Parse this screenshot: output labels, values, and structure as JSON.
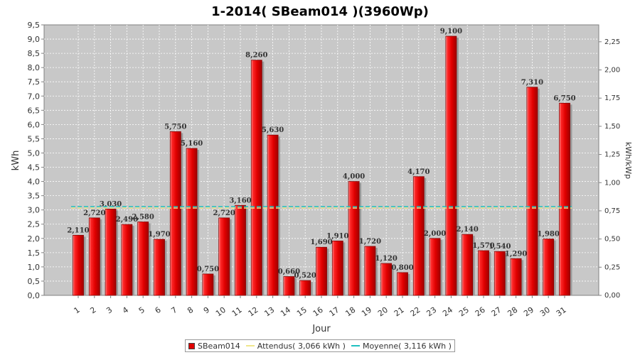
{
  "chart_data": {
    "type": "bar",
    "title": "1-2014( SBeam014 )(3960Wp)",
    "xlabel": "Jour",
    "ylabel": "kWh",
    "y2label": "kWh/kWp",
    "ylim": [
      0,
      9.5
    ],
    "y2lim": [
      0,
      2.4
    ],
    "yticks": [
      "0,0",
      "0,5",
      "1,0",
      "1,5",
      "2,0",
      "2,5",
      "3,0",
      "3,5",
      "4,0",
      "4,5",
      "5,0",
      "5,5",
      "6,0",
      "6,5",
      "7,0",
      "7,5",
      "8,0",
      "8,5",
      "9,0",
      "9,5"
    ],
    "y2ticks": [
      "0,00",
      "0,25",
      "0,50",
      "0,75",
      "1,00",
      "1,25",
      "1,50",
      "1,75",
      "2,00",
      "2,25"
    ],
    "categories": [
      "1",
      "2",
      "3",
      "4",
      "5",
      "6",
      "7",
      "8",
      "9",
      "10",
      "11",
      "12",
      "13",
      "14",
      "15",
      "16",
      "17",
      "18",
      "19",
      "20",
      "21",
      "22",
      "23",
      "24",
      "25",
      "26",
      "27",
      "28",
      "29",
      "30",
      "31"
    ],
    "series": [
      {
        "name": "SBeam014",
        "values": [
          2.11,
          2.72,
          3.03,
          2.49,
          2.58,
          1.97,
          5.75,
          5.16,
          0.75,
          2.72,
          3.16,
          8.26,
          5.63,
          0.66,
          0.52,
          1.69,
          1.91,
          4.0,
          1.72,
          1.12,
          0.8,
          4.17,
          2.0,
          9.1,
          2.14,
          1.57,
          1.54,
          1.29,
          7.31,
          1.98,
          6.75
        ],
        "value_labels": [
          "2,110",
          "2,720",
          "3,030",
          "2,490",
          "2,580",
          "1,970",
          "5,750",
          "5,160",
          "0,750",
          "2,720",
          "3,160",
          "8,260",
          "5,630",
          "0,660",
          "0,520",
          "1,690",
          "1,910",
          "4,000",
          "1,720",
          "1,120",
          "0,800",
          "4,170",
          "2,000",
          "9,100",
          "2,140",
          "1,570",
          "1,540",
          "1,290",
          "7,310",
          "1,980",
          "6,750"
        ],
        "color": "#e00000"
      },
      {
        "name": "Attendus( 3,066 kWh )",
        "value": 3.066,
        "color": "#f0e68c"
      },
      {
        "name": "Moyenne( 3,116 kWh )",
        "value": 3.116,
        "color": "#20c0c0"
      }
    ],
    "grid": true,
    "legend_position": "bottom"
  },
  "legend": {
    "items": [
      {
        "label": "SBeam014",
        "color": "#e00000",
        "kind": "box"
      },
      {
        "label": "Attendus( 3,066 kWh )",
        "color": "#f0e68c",
        "kind": "line"
      },
      {
        "label": "Moyenne( 3,116 kWh )",
        "color": "#20c0c0",
        "kind": "line"
      }
    ]
  },
  "colors": {
    "plot_background": "#c8c8c8",
    "grid": "#ffffff",
    "bar_fill": "#e00000",
    "bar_edge": "#8a0000"
  }
}
